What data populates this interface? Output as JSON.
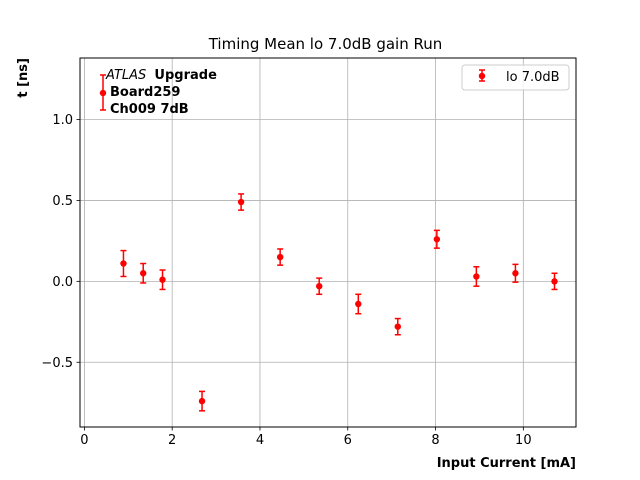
{
  "chart_data": {
    "type": "scatter",
    "title": "Timing Mean lo 7.0dB gain Run",
    "xlabel": "Input Current [mA]",
    "ylabel": "t [ns]",
    "xlim": [
      -0.1,
      11.2
    ],
    "ylim": [
      -0.9,
      1.38
    ],
    "xticks": [
      0,
      2,
      4,
      6,
      8,
      10
    ],
    "xtick_labels": [
      "0",
      "2",
      "4",
      "6",
      "8",
      "10"
    ],
    "yticks": [
      -0.5,
      0.0,
      0.5,
      1.0
    ],
    "ytick_labels": [
      "−0.5",
      "0.0",
      "0.5",
      "1.0"
    ],
    "grid": true,
    "legend_position": "top-right",
    "color": "#ff0000",
    "annotations": {
      "atlas": "ATLAS",
      "upgrade": "Upgrade",
      "board": "Board259",
      "channel": "Ch009 7dB"
    },
    "series": [
      {
        "name": "lo 7.0dB",
        "x": [
          0.89,
          1.34,
          1.78,
          2.68,
          3.57,
          4.46,
          5.35,
          6.24,
          7.14,
          8.03,
          8.93,
          9.82,
          10.71
        ],
        "y": [
          0.11,
          0.05,
          0.01,
          -0.74,
          0.49,
          0.15,
          -0.03,
          -0.14,
          -0.28,
          0.26,
          0.03,
          0.05,
          0.0
        ],
        "yerr": [
          0.08,
          0.06,
          0.06,
          0.06,
          0.05,
          0.05,
          0.05,
          0.06,
          0.05,
          0.055,
          0.06,
          0.055,
          0.05
        ]
      }
    ]
  }
}
